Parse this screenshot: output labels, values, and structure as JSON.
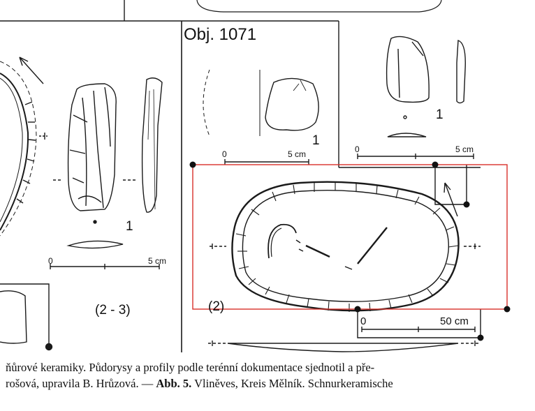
{
  "figure": {
    "object_title": "Obj. 1071",
    "artifact_number_left": "1",
    "artifact_number_mid": "1",
    "artifact_number_right": "1",
    "plan_label": "(2)",
    "panel_label": "(2 - 3)",
    "scale_left": {
      "start": "0",
      "end": "5 cm"
    },
    "scale_mid": {
      "start": "0",
      "end": "5 cm"
    },
    "scale_right": {
      "start": "0",
      "end": "5 cm"
    },
    "scale_plan": {
      "start": "0",
      "end": "50 cm"
    },
    "colors": {
      "highlight_frame": "#d9302a",
      "ink": "#1a1a1a"
    }
  },
  "caption": {
    "line1": "ňůrové keramiky. Půdorysy a profily podle terénní dokumentace sjednotil a pře-",
    "line2_pre": "rošová, upravila B. Hrůzová. — ",
    "line2_bold": "Abb. 5.",
    "line2_post": " Vliněves, Kreis Mělník. Schnurkeramische"
  }
}
